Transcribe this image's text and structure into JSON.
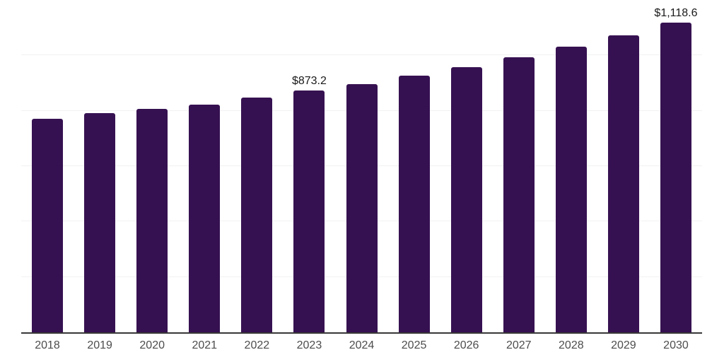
{
  "chart_data": {
    "type": "bar",
    "title": "",
    "xlabel": "",
    "ylabel": "",
    "categories": [
      "2018",
      "2019",
      "2020",
      "2021",
      "2022",
      "2023",
      "2024",
      "2025",
      "2026",
      "2027",
      "2028",
      "2029",
      "2030"
    ],
    "values": [
      770,
      791,
      807,
      821,
      847,
      873.2,
      897,
      926,
      958,
      994,
      1032,
      1072,
      1118.6
    ],
    "labeled_points": {
      "2023": "$873.2",
      "2030": "$1,118.6"
    },
    "ylim": [
      0,
      1200
    ],
    "gridline_interval": 200,
    "grid": "horizontal",
    "legend": "none",
    "bar_color": "#361151",
    "axis_line_color": "#383838",
    "gridline_color": "#f2f2f2",
    "value_label_color": "#1a1a1a",
    "tick_label_color": "#4d4d4d"
  }
}
